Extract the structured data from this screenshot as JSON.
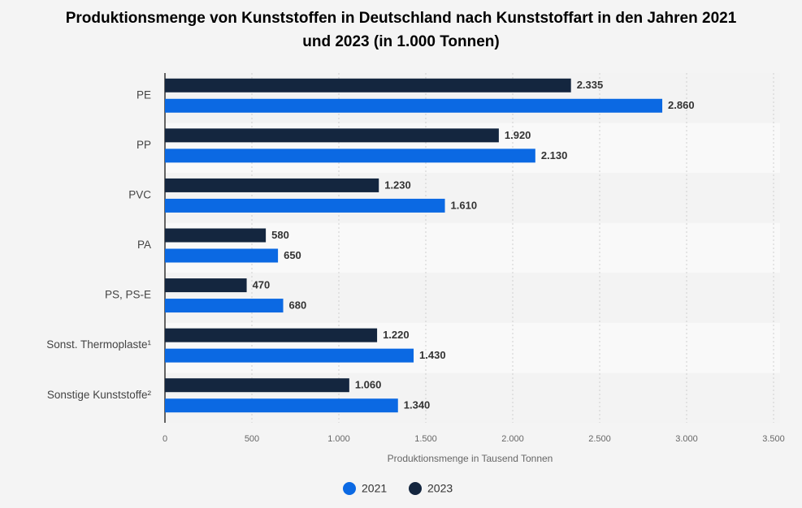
{
  "chart_data": {
    "type": "hbar",
    "title": "Produktionsmenge von Kunststoffen in Deutschland nach Kunststoffart in den Jahren 2021 und 2023 (in 1.000 Tonnen)",
    "x_label": "Produktionsmenge in Tausend Tonnen",
    "categories": [
      "PE",
      "PP",
      "PVC",
      "PA",
      "PS, PS-E",
      "Sonst. Thermoplaste¹",
      "Sonstige Kunststoffe²"
    ],
    "series": [
      {
        "name": "2021",
        "color": "#0b69e3",
        "values": [
          2860,
          2130,
          1610,
          650,
          680,
          1430,
          1340
        ],
        "value_labels": [
          "2.860",
          "2.130",
          "1.610",
          "650",
          "680",
          "1.430",
          "1.340"
        ]
      },
      {
        "name": "2023",
        "color": "#14263f",
        "values": [
          2335,
          1920,
          1230,
          580,
          470,
          1220,
          1060
        ],
        "value_labels": [
          "2.335",
          "1.920",
          "1.230",
          "580",
          "470",
          "1.220",
          "1.060"
        ]
      }
    ],
    "xlim": [
      0,
      3500
    ],
    "xticks": [
      0,
      500,
      {
        "value": 1000,
        "label": "1.000"
      },
      {
        "value": 1500,
        "label": "1.500"
      },
      {
        "value": 2000,
        "label": "2.000"
      },
      {
        "value": 2500,
        "label": "2.500"
      },
      {
        "value": 3000,
        "label": "3.000"
      },
      {
        "value": 3500,
        "label": "3.500"
      }
    ],
    "grid": true,
    "legend": "bottom"
  }
}
